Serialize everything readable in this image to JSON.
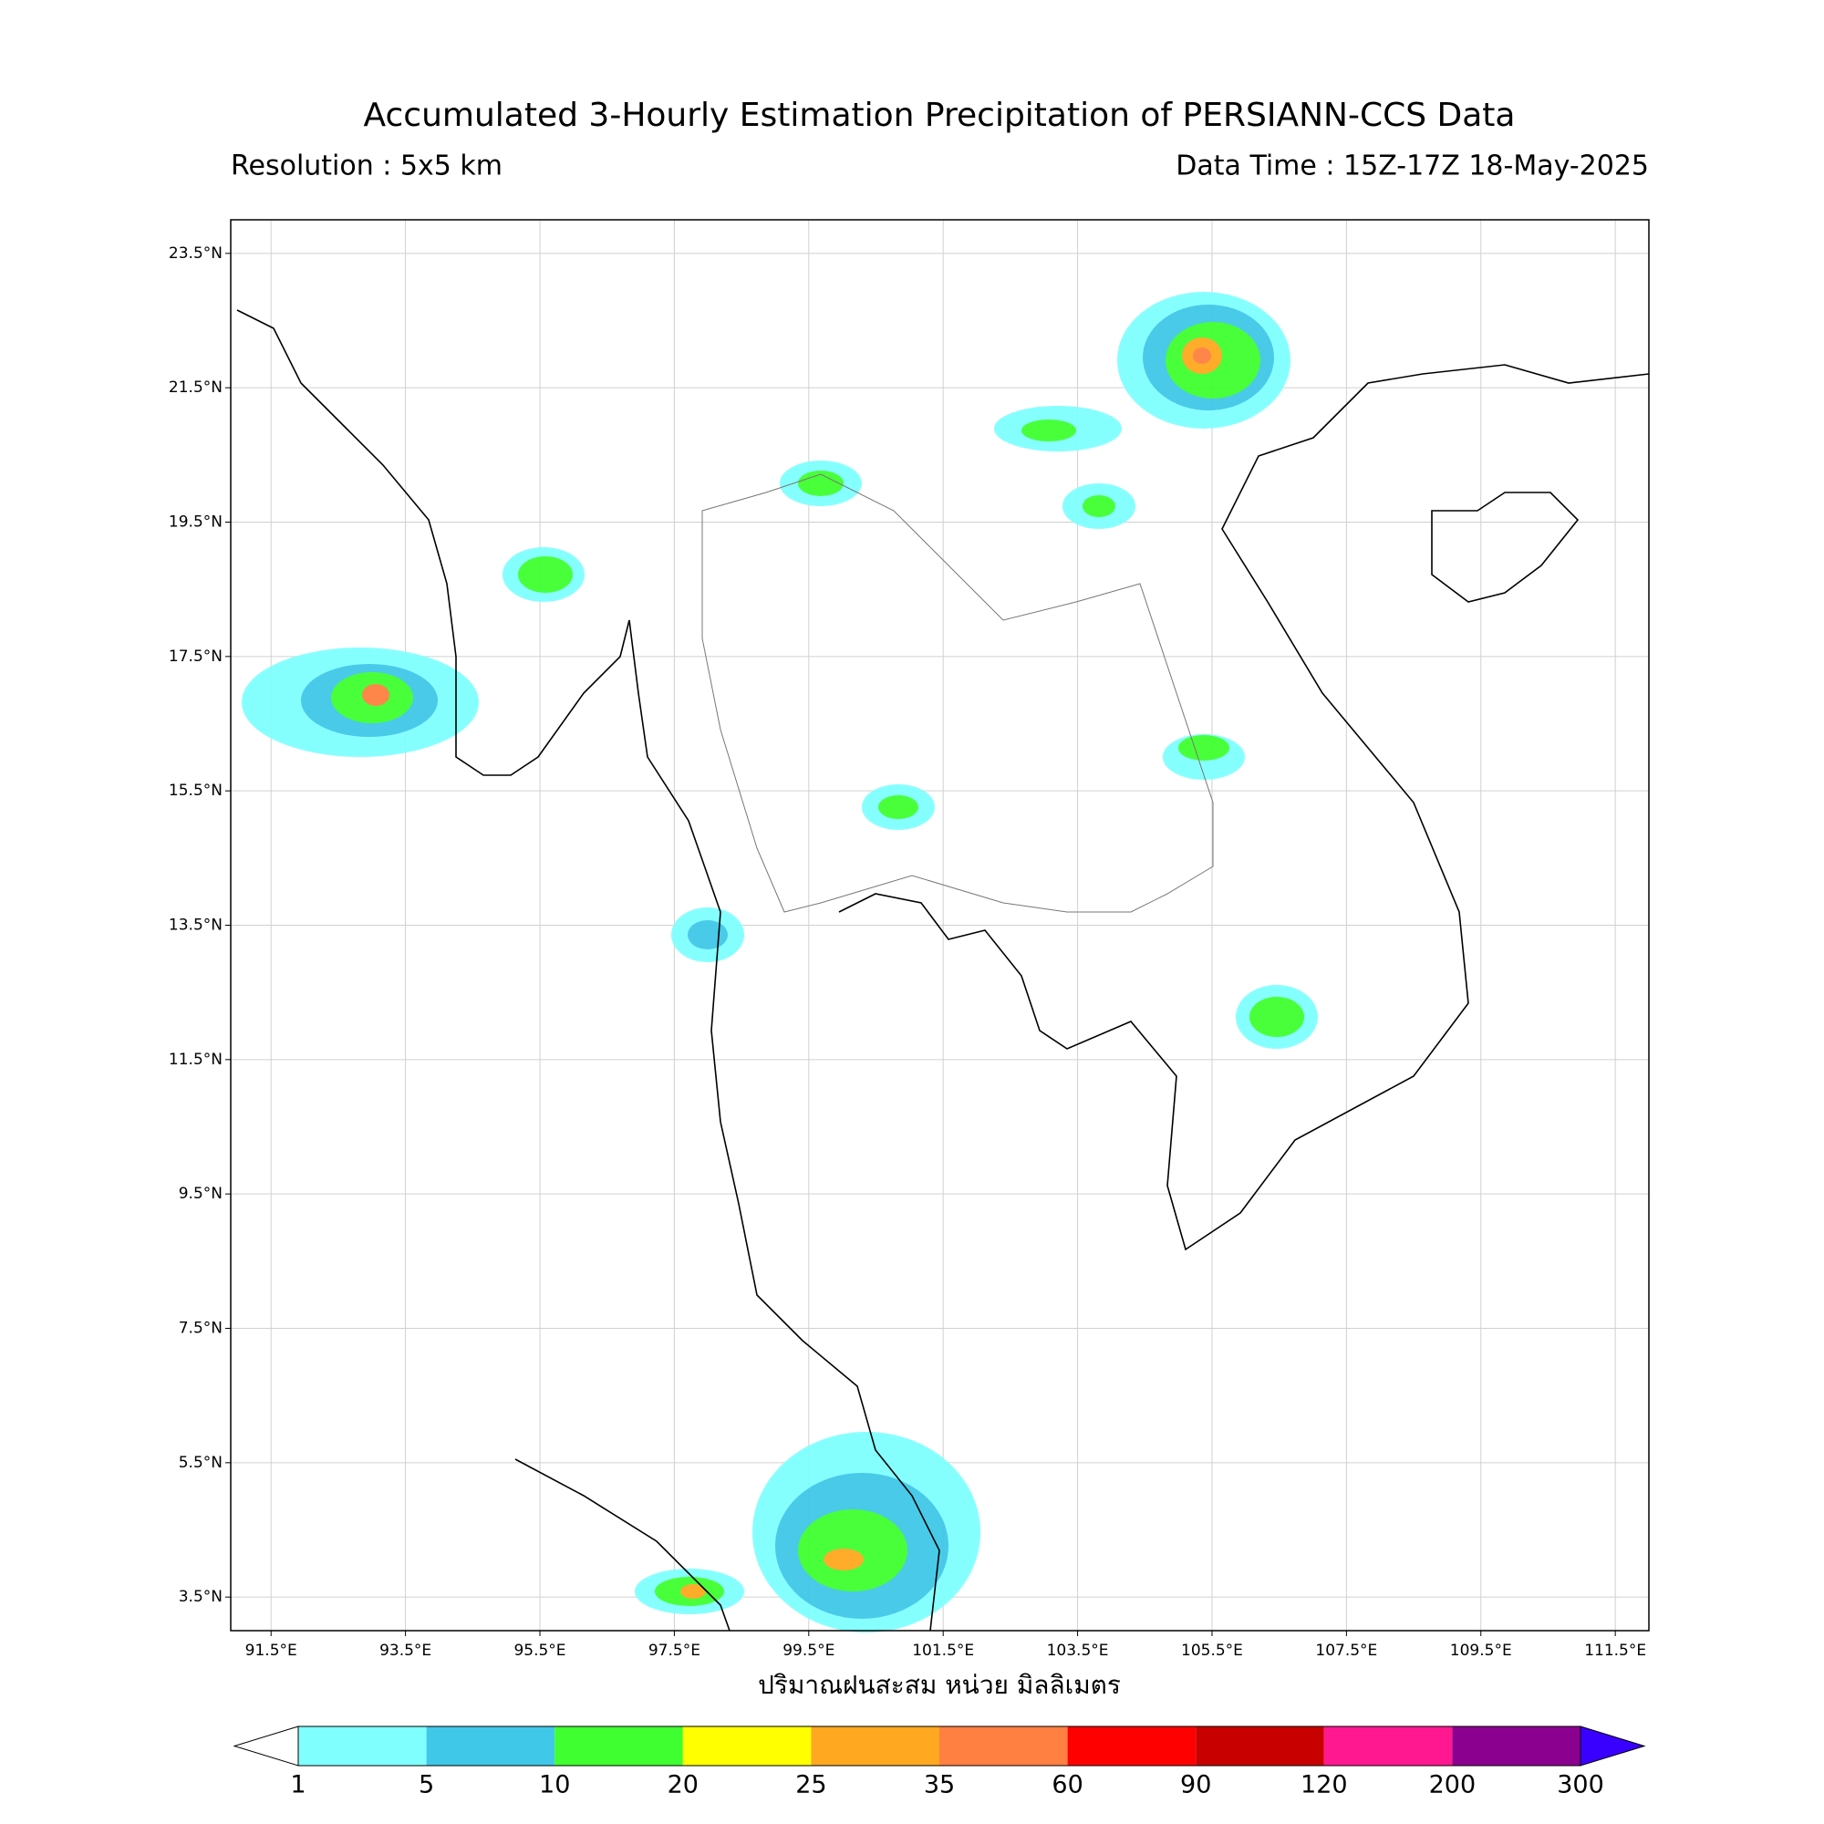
{
  "title": "Accumulated 3-Hourly Estimation Precipitation of PERSIANN-CCS Data",
  "subtitle_left": "Resolution : 5x5 km",
  "subtitle_right": "Data Time : 15Z-17Z 18-May-2025",
  "map": {
    "xlim": [
      90.9,
      112.0
    ],
    "ylim": [
      3.0,
      24.0
    ],
    "grid": true,
    "lon_ticks": [
      {
        "value": 91.5,
        "label": "91.5°E"
      },
      {
        "value": 93.5,
        "label": "93.5°E"
      },
      {
        "value": 95.5,
        "label": "95.5°E"
      },
      {
        "value": 97.5,
        "label": "97.5°E"
      },
      {
        "value": 99.5,
        "label": "99.5°E"
      },
      {
        "value": 101.5,
        "label": "101.5°E"
      },
      {
        "value": 103.5,
        "label": "103.5°E"
      },
      {
        "value": 105.5,
        "label": "105.5°E"
      },
      {
        "value": 107.5,
        "label": "107.5°E"
      },
      {
        "value": 109.5,
        "label": "109.5°E"
      },
      {
        "value": 111.5,
        "label": "111.5°E"
      }
    ],
    "lat_ticks": [
      {
        "value": 3.5,
        "label": "3.5°N"
      },
      {
        "value": 5.5,
        "label": "5.5°N"
      },
      {
        "value": 7.5,
        "label": "7.5°N"
      },
      {
        "value": 9.5,
        "label": "9.5°N"
      },
      {
        "value": 11.5,
        "label": "11.5°N"
      },
      {
        "value": 13.5,
        "label": "13.5°N"
      },
      {
        "value": 15.5,
        "label": "15.5°N"
      },
      {
        "value": 17.5,
        "label": "17.5°N"
      },
      {
        "value": 19.5,
        "label": "19.5°N"
      },
      {
        "value": 21.5,
        "label": "21.5°N"
      },
      {
        "value": 23.5,
        "label": "23.5°N"
      }
    ]
  },
  "colorbar": {
    "label": "ปริมาณฝนสะสม หน่วย มิลลิเมตร",
    "bounds": [
      1,
      5,
      10,
      20,
      25,
      35,
      60,
      90,
      120,
      200,
      300
    ],
    "colors": [
      "#80ffff",
      "#40c8e8",
      "#40ff30",
      "#ffff00",
      "#ffa820",
      "#ff8040",
      "#ff0000",
      "#c80000",
      "#ff1890",
      "#8c0090"
    ],
    "under_color": "#ffffff",
    "over_color": "#3a00ff"
  }
}
